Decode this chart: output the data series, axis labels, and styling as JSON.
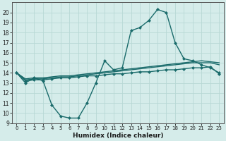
{
  "title": "",
  "xlabel": "Humidex (Indice chaleur)",
  "background_color": "#d5ecea",
  "grid_color": "#b8d8d5",
  "line_color": "#1a6b6b",
  "x": [
    0,
    1,
    2,
    3,
    4,
    5,
    6,
    7,
    8,
    9,
    10,
    11,
    12,
    13,
    14,
    15,
    16,
    17,
    18,
    19,
    20,
    21,
    22,
    23
  ],
  "y_main": [
    14.0,
    13.0,
    13.5,
    13.2,
    10.8,
    9.7,
    9.5,
    9.5,
    11.0,
    13.0,
    15.2,
    14.3,
    14.5,
    18.2,
    18.5,
    19.2,
    20.3,
    20.0,
    17.0,
    15.4,
    15.2,
    14.8,
    14.5,
    14.0
  ],
  "y_line1": [
    14.0,
    13.2,
    13.3,
    13.3,
    13.4,
    13.5,
    13.5,
    13.6,
    13.7,
    13.7,
    13.8,
    13.9,
    13.9,
    14.0,
    14.1,
    14.1,
    14.2,
    14.3,
    14.3,
    14.4,
    14.5,
    14.5,
    14.6,
    13.9
  ],
  "y_line2": [
    14.0,
    13.3,
    13.4,
    13.4,
    13.5,
    13.6,
    13.6,
    13.7,
    13.8,
    13.9,
    14.0,
    14.1,
    14.2,
    14.3,
    14.4,
    14.5,
    14.6,
    14.7,
    14.8,
    14.9,
    15.0,
    15.0,
    15.0,
    14.8
  ],
  "y_line3": [
    14.0,
    13.4,
    13.5,
    13.5,
    13.6,
    13.7,
    13.7,
    13.8,
    13.9,
    14.0,
    14.1,
    14.2,
    14.3,
    14.4,
    14.5,
    14.6,
    14.7,
    14.8,
    14.9,
    15.0,
    15.1,
    15.2,
    15.1,
    15.0
  ],
  "ylim": [
    9,
    21
  ],
  "xlim": [
    -0.5,
    23.5
  ],
  "yticks": [
    9,
    10,
    11,
    12,
    13,
    14,
    15,
    16,
    17,
    18,
    19,
    20
  ],
  "xticks": [
    0,
    1,
    2,
    3,
    4,
    5,
    6,
    7,
    8,
    9,
    10,
    11,
    12,
    13,
    14,
    15,
    16,
    17,
    18,
    19,
    20,
    21,
    22,
    23
  ],
  "markersize": 2.5,
  "linewidth": 1.0
}
